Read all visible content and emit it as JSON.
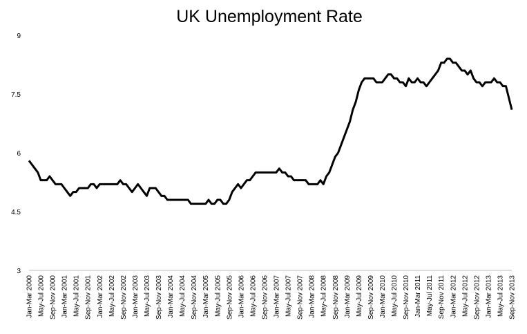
{
  "chart_data": {
    "type": "line",
    "title": "UK Unemployment Rate",
    "categories": [
      "Jan-Mar 2000",
      null,
      null,
      null,
      "May-Jul 2000",
      null,
      null,
      null,
      "Sep-Nov 2000",
      null,
      null,
      null,
      "Jan-Mar 2001",
      null,
      null,
      null,
      "May-Jul 2001",
      null,
      null,
      null,
      "Sep-Nov 2001",
      null,
      null,
      null,
      "Jan-Mar 2002",
      null,
      null,
      null,
      "May-Jul 2002",
      null,
      null,
      null,
      "Sep-Nov 2002",
      null,
      null,
      null,
      "Jan-Mar 2003",
      null,
      null,
      null,
      "May-Jul 2003",
      null,
      null,
      null,
      "Sep-Nov 2003",
      null,
      null,
      null,
      "Jan-Mar 2004",
      null,
      null,
      null,
      "May-Jul 2004",
      null,
      null,
      null,
      "Sep-Nov 2004",
      null,
      null,
      null,
      "Jan-Mar 2005",
      null,
      null,
      null,
      "May-Jul 2005",
      null,
      null,
      null,
      "Sep-Nov 2005",
      null,
      null,
      null,
      "Jan-Mar 2006",
      null,
      null,
      null,
      "May-Jul 2006",
      null,
      null,
      null,
      "Sep-Nov 2006",
      null,
      null,
      null,
      "Jan-Mar 2007",
      null,
      null,
      null,
      "May-Jul 2007",
      null,
      null,
      null,
      "Sep-Nov 2007",
      null,
      null,
      null,
      "Jan-Mar 2008",
      null,
      null,
      null,
      "May-Jul 2008",
      null,
      null,
      null,
      "Sep-Nov 2008",
      null,
      null,
      null,
      "Jan-Mar 2009",
      null,
      null,
      null,
      "May-Jul 2009",
      null,
      null,
      null,
      "Sep-Nov 2009",
      null,
      null,
      null,
      "Jan-Mar 2010",
      null,
      null,
      null,
      "May-Jul 2010",
      null,
      null,
      null,
      "Sep-Nov 2010",
      null,
      null,
      null,
      "Jan-Mar 2011",
      null,
      null,
      null,
      "May-Jul 2011",
      null,
      null,
      null,
      "Sep-Nov 2011",
      null,
      null,
      null,
      "Jan-Mar 2012",
      null,
      null,
      null,
      "May-Jul 2012",
      null,
      null,
      null,
      "Sep-Nov 2012",
      null,
      null,
      null,
      "Jan-Mar 2013",
      null,
      null,
      null,
      "May-Jul 2013",
      null,
      null,
      null,
      "Sep-Nov 2013"
    ],
    "values": [
      5.8,
      5.7,
      5.6,
      5.5,
      5.3,
      5.3,
      5.3,
      5.4,
      5.3,
      5.2,
      5.2,
      5.2,
      5.1,
      5.0,
      4.9,
      5.0,
      5.0,
      5.1,
      5.1,
      5.1,
      5.1,
      5.2,
      5.2,
      5.1,
      5.2,
      5.2,
      5.2,
      5.2,
      5.2,
      5.2,
      5.2,
      5.3,
      5.2,
      5.2,
      5.1,
      5.0,
      5.1,
      5.2,
      5.1,
      5.0,
      4.9,
      5.1,
      5.1,
      5.1,
      5.0,
      4.9,
      4.9,
      4.8,
      4.8,
      4.8,
      4.8,
      4.8,
      4.8,
      4.8,
      4.8,
      4.7,
      4.7,
      4.7,
      4.7,
      4.7,
      4.7,
      4.8,
      4.7,
      4.7,
      4.8,
      4.8,
      4.7,
      4.7,
      4.8,
      5.0,
      5.1,
      5.2,
      5.1,
      5.2,
      5.3,
      5.3,
      5.4,
      5.5,
      5.5,
      5.5,
      5.5,
      5.5,
      5.5,
      5.5,
      5.5,
      5.6,
      5.5,
      5.5,
      5.4,
      5.4,
      5.3,
      5.3,
      5.3,
      5.3,
      5.3,
      5.2,
      5.2,
      5.2,
      5.2,
      5.3,
      5.2,
      5.4,
      5.5,
      5.7,
      5.9,
      6.0,
      6.2,
      6.4,
      6.6,
      6.8,
      7.1,
      7.3,
      7.6,
      7.8,
      7.9,
      7.9,
      7.9,
      7.9,
      7.8,
      7.8,
      7.8,
      7.9,
      8.0,
      8.0,
      7.9,
      7.9,
      7.8,
      7.8,
      7.7,
      7.9,
      7.8,
      7.8,
      7.9,
      7.8,
      7.8,
      7.7,
      7.8,
      7.9,
      8.0,
      8.1,
      8.3,
      8.3,
      8.4,
      8.4,
      8.3,
      8.3,
      8.2,
      8.1,
      8.1,
      8.0,
      8.1,
      7.9,
      7.8,
      7.8,
      7.7,
      7.8,
      7.8,
      7.8,
      7.9,
      7.8,
      7.8,
      7.7,
      7.7,
      7.4,
      7.1
    ],
    "color": "#000000",
    "ylim": [
      3,
      9
    ],
    "yticks": [
      3,
      4.5,
      6,
      7.5,
      9
    ],
    "grid": false
  }
}
